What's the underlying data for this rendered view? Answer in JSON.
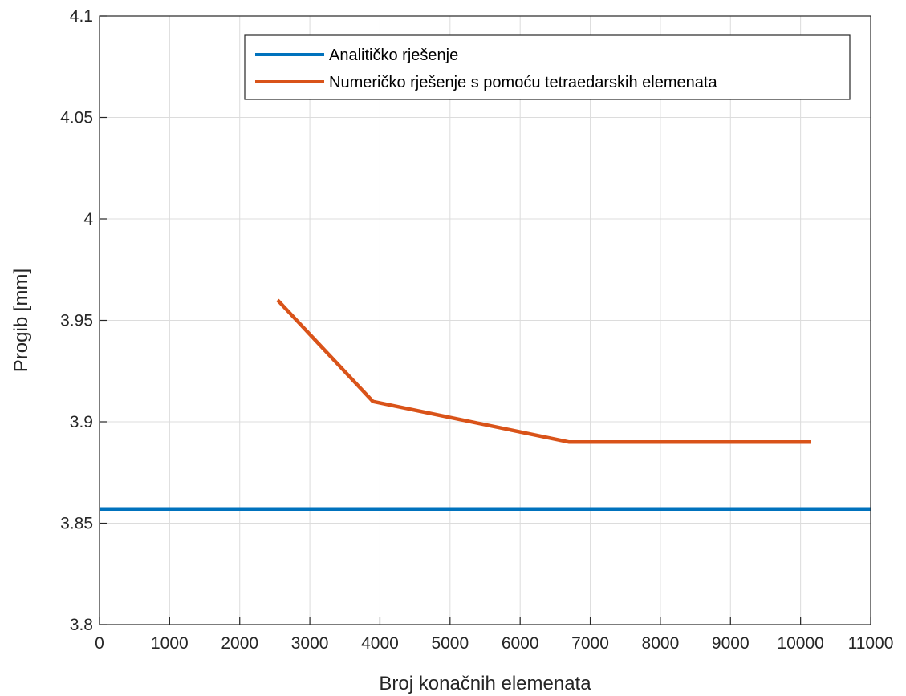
{
  "chart_data": {
    "type": "line",
    "title": "",
    "xlabel": "Broj konačnih elemenata",
    "ylabel": "Progib [mm]",
    "xlim": [
      0,
      11000
    ],
    "ylim": [
      3.8,
      4.1
    ],
    "xticks": [
      "0",
      "1000",
      "2000",
      "3000",
      "4000",
      "5000",
      "6000",
      "7000",
      "8000",
      "9000",
      "10000",
      "11000"
    ],
    "yticks": [
      "3.8",
      "3.85",
      "3.9",
      "3.95",
      "4",
      "4.05",
      "4.1"
    ],
    "grid": true,
    "legend_position": "top-right",
    "series": [
      {
        "name": "Analitičko rješenje",
        "color": "#0072BD",
        "x": [
          0,
          11000
        ],
        "y": [
          3.857,
          3.857
        ]
      },
      {
        "name": "Numeričko rješenje s pomoću tetraedarskih elemenata",
        "color": "#D95319",
        "x": [
          2540,
          3900,
          6700,
          10150
        ],
        "y": [
          3.96,
          3.91,
          3.89,
          3.89
        ]
      }
    ]
  }
}
